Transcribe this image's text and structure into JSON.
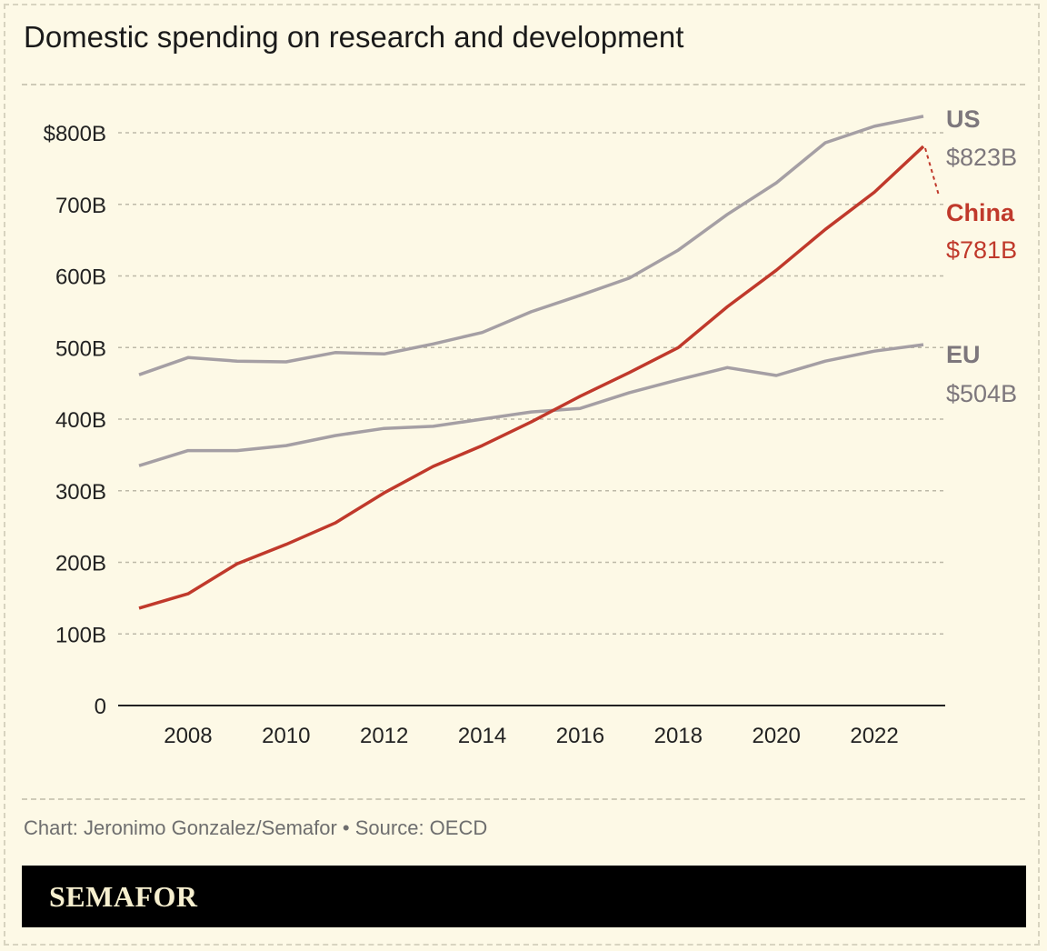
{
  "title": "Domestic spending on research and development",
  "credit": "Chart: Jeronimo Gonzalez/Semafor • Source: OECD",
  "logo": "SEMAFOR",
  "chart_data": {
    "type": "line",
    "title": "Domestic spending on research and development",
    "x": [
      2007,
      2008,
      2009,
      2010,
      2011,
      2012,
      2013,
      2014,
      2015,
      2016,
      2017,
      2018,
      2019,
      2020,
      2021,
      2022,
      2023
    ],
    "xticks": [
      "2008",
      "2010",
      "2012",
      "2014",
      "2016",
      "2018",
      "2020",
      "2022"
    ],
    "yticks": [
      "0",
      "100B",
      "200B",
      "300B",
      "400B",
      "500B",
      "600B",
      "700B",
      "$800B"
    ],
    "ylim": [
      0,
      800
    ],
    "xlim": [
      2007,
      2023
    ],
    "grid": true,
    "unit": "billion USD",
    "series": [
      {
        "name": "US",
        "end_label": "$823B",
        "color": "#a59fa4",
        "label_color": "#7d777c",
        "values": [
          462,
          486,
          481,
          480,
          493,
          491,
          505,
          521,
          550,
          573,
          597,
          636,
          686,
          730,
          786,
          809,
          823
        ]
      },
      {
        "name": "China",
        "end_label": "$781B",
        "color": "#c0392b",
        "label_color": "#c0392b",
        "values": [
          136,
          156,
          198,
          225,
          255,
          297,
          334,
          363,
          396,
          432,
          465,
          500,
          557,
          608,
          665,
          717,
          781
        ]
      },
      {
        "name": "EU",
        "end_label": "$504B",
        "color": "#a59fa4",
        "label_color": "#7d777c",
        "values": [
          335,
          356,
          356,
          363,
          377,
          387,
          390,
          400,
          410,
          415,
          437,
          455,
          472,
          461,
          481,
          495,
          504
        ]
      }
    ]
  }
}
